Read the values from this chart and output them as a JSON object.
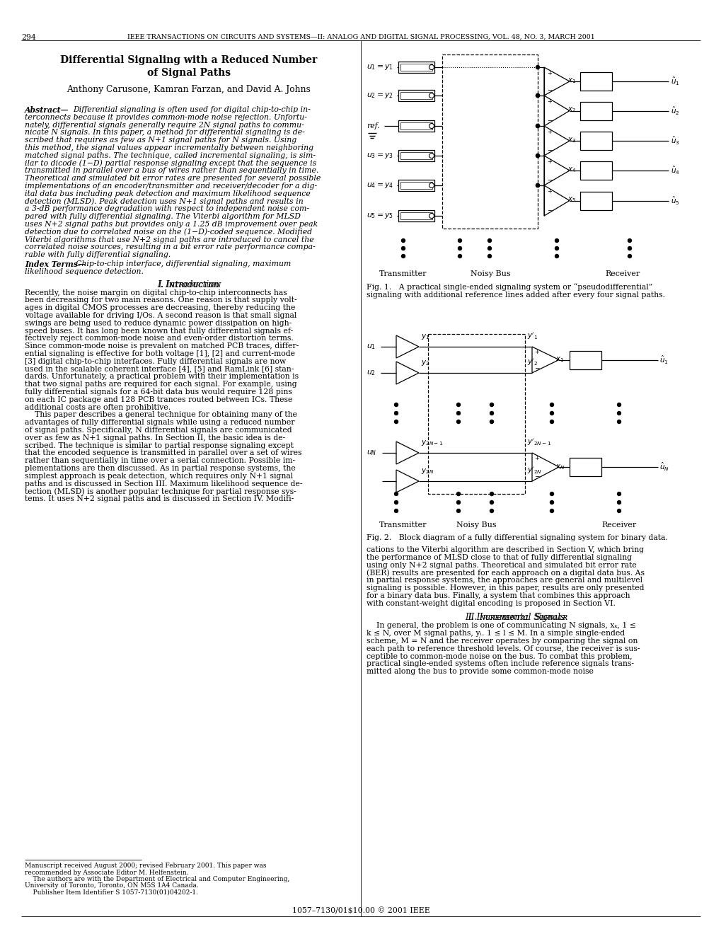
{
  "page_width": 10.2,
  "page_height": 13.2,
  "bg_color": "#ffffff",
  "header_text": "IEEE TRANSACTIONS ON CIRCUITS AND SYSTEMS—II: ANALOG AND DIGITAL SIGNAL PROCESSING, VOL. 48, NO. 3, MARCH 2001",
  "page_number": "294",
  "title_line1": "Differential Signaling with a Reduced Number",
  "title_line2": "of Signal Paths",
  "authors": "Anthony Carusone, Kamran Farzan, and David A. Johns",
  "fig1_caption_line1": "Fig. 1.   A practical single-ended signaling system or “pseudodifferential”",
  "fig1_caption_line2": "signaling with additional reference lines added after every four signal paths.",
  "fig2_caption": "Fig. 2.   Block diagram of a fully differential signaling system for binary data.",
  "bottom_text": "1057–7130/01$10.00 © 2001 IEEE"
}
